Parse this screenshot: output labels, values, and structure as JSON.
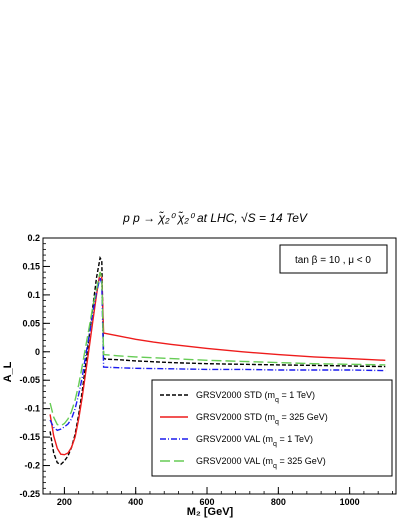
{
  "chart_data": {
    "type": "line",
    "title": "p p → χ̃₂⁰ χ̃₂⁰ at LHC, √S = 14 TeV",
    "xlabel": "M₂ [GeV]",
    "ylabel": "A_L",
    "xlim": [
      140,
      1130
    ],
    "ylim": [
      -0.25,
      0.2
    ],
    "xticks": [
      200,
      400,
      600,
      800,
      1000
    ],
    "yticks": [
      -0.25,
      -0.2,
      -0.15,
      -0.1,
      -0.05,
      0,
      0.05,
      0.1,
      0.15,
      0.2
    ],
    "ytick_labels": [
      "-0.25",
      "-0.2",
      "-0.15",
      "-0.1",
      "-0.05",
      "0",
      "0.05",
      "0.1",
      "0.15",
      "0.2"
    ],
    "xtick_labels": [
      "200",
      "400",
      "600",
      "800",
      "1000"
    ],
    "annotation": "tan β = 10  ,  μ < 0",
    "grid": false,
    "legend_position": "bottom-right",
    "series": [
      {
        "name": "GRSV2000 STD (m_q = 1 TeV)",
        "name_main": "GRSV2000 STD (m",
        "name_sub": "q",
        "name_tail": " = 1 TeV)",
        "color": "#000000",
        "dash": "4,2",
        "x": [
          160,
          170,
          180,
          190,
          200,
          210,
          220,
          230,
          240,
          250,
          260,
          270,
          280,
          290,
          300,
          305,
          310,
          320,
          350,
          400,
          500,
          600,
          700,
          800,
          900,
          1000,
          1100
        ],
        "y": [
          -0.14,
          -0.178,
          -0.195,
          -0.198,
          -0.192,
          -0.183,
          -0.168,
          -0.145,
          -0.11,
          -0.07,
          -0.02,
          0.03,
          0.08,
          0.13,
          0.165,
          0.16,
          -0.012,
          -0.013,
          -0.014,
          -0.016,
          -0.019,
          -0.021,
          -0.022,
          -0.023,
          -0.024,
          -0.025,
          -0.026
        ]
      },
      {
        "name": "GRSV2000 STD (m_q = 325 GeV)",
        "name_main": "GRSV2000 STD (m",
        "name_sub": "q",
        "name_tail": " = 325 GeV)",
        "color": "#ee1c1c",
        "dash": "",
        "x": [
          160,
          170,
          180,
          190,
          200,
          210,
          220,
          230,
          240,
          250,
          260,
          270,
          280,
          290,
          300,
          305,
          310,
          350,
          400,
          450,
          500,
          600,
          700,
          800,
          900,
          1000,
          1100
        ],
        "y": [
          -0.11,
          -0.148,
          -0.17,
          -0.18,
          -0.181,
          -0.178,
          -0.168,
          -0.15,
          -0.118,
          -0.08,
          -0.035,
          0.01,
          0.055,
          0.1,
          0.14,
          0.13,
          0.033,
          0.028,
          0.022,
          0.017,
          0.013,
          0.006,
          0.0,
          -0.005,
          -0.009,
          -0.012,
          -0.015
        ]
      },
      {
        "name": "GRSV2000 VAL (m_q = 1 TeV)",
        "name_main": "GRSV2000 VAL (m",
        "name_sub": "q",
        "name_tail": " = 1 TeV)",
        "color": "#1c1cee",
        "dash": "6,2,1,2",
        "x": [
          160,
          170,
          180,
          190,
          200,
          210,
          220,
          230,
          240,
          250,
          260,
          270,
          280,
          290,
          300,
          305,
          310,
          350,
          400,
          500,
          600,
          700,
          800,
          900,
          1000,
          1100
        ],
        "y": [
          -0.12,
          -0.133,
          -0.138,
          -0.136,
          -0.132,
          -0.127,
          -0.118,
          -0.1,
          -0.075,
          -0.045,
          -0.005,
          0.03,
          0.07,
          0.105,
          0.13,
          0.12,
          -0.027,
          -0.028,
          -0.029,
          -0.03,
          -0.031,
          -0.031,
          -0.032,
          -0.032,
          -0.032,
          -0.033
        ]
      },
      {
        "name": "GRSV2000 VAL (m_q = 325 GeV)",
        "name_main": "GRSV2000 VAL (m",
        "name_sub": "q",
        "name_tail": " = 325 GeV)",
        "color": "#66cc55",
        "dash": "10,4",
        "x": [
          160,
          170,
          180,
          190,
          200,
          210,
          220,
          230,
          240,
          250,
          260,
          270,
          280,
          290,
          300,
          305,
          310,
          350,
          400,
          500,
          600,
          700,
          800,
          900,
          1000,
          1100
        ],
        "y": [
          -0.09,
          -0.115,
          -0.128,
          -0.13,
          -0.126,
          -0.118,
          -0.105,
          -0.085,
          -0.058,
          -0.025,
          0.01,
          0.045,
          0.08,
          0.11,
          0.14,
          0.13,
          -0.005,
          -0.007,
          -0.009,
          -0.012,
          -0.015,
          -0.017,
          -0.019,
          -0.021,
          -0.022,
          -0.023
        ]
      }
    ]
  }
}
